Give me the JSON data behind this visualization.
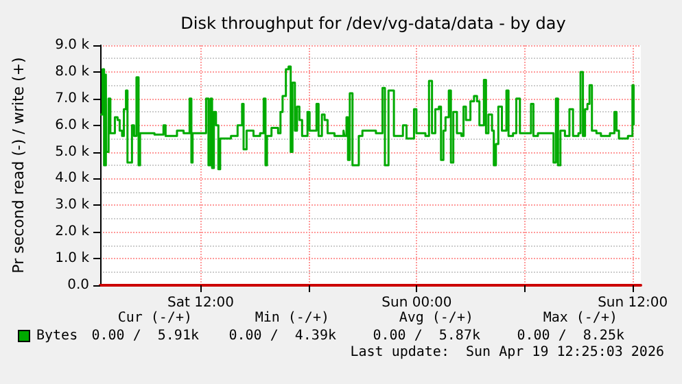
{
  "chart_data": {
    "type": "step",
    "title": "Disk throughput for /dev/vg-data/data - by day",
    "ylabel": "Pr second read (-) / write (+)",
    "x": [
      "2026-04-18T06:26",
      "2026-04-18T06:33",
      "2026-04-18T06:38",
      "2026-04-18T06:44",
      "2026-04-18T06:45",
      "2026-04-18T06:53",
      "2026-04-18T06:59",
      "2026-04-18T07:08",
      "2026-04-18T07:14",
      "2026-04-18T07:23",
      "2026-04-18T07:30",
      "2026-04-18T07:38",
      "2026-04-18T07:44",
      "2026-04-18T07:51",
      "2026-04-18T07:56",
      "2026-04-18T08:03",
      "2026-04-18T08:11",
      "2026-04-18T08:18",
      "2026-04-18T08:26",
      "2026-04-18T08:33",
      "2026-04-18T08:38",
      "2026-04-18T08:56",
      "2026-04-18T09:26",
      "2026-04-18T09:56",
      "2026-04-18T10:03",
      "2026-04-18T10:41",
      "2026-04-18T11:03",
      "2026-04-18T11:23",
      "2026-04-18T11:29",
      "2026-04-18T11:33",
      "2026-04-18T11:56",
      "2026-04-18T12:18",
      "2026-04-18T12:26",
      "2026-04-18T12:33",
      "2026-04-18T12:38",
      "2026-04-18T12:44",
      "2026-04-18T12:51",
      "2026-04-18T12:59",
      "2026-04-18T13:05",
      "2026-04-18T13:26",
      "2026-04-18T13:41",
      "2026-04-18T14:03",
      "2026-04-18T14:18",
      "2026-04-18T14:23",
      "2026-04-18T14:33",
      "2026-04-18T14:56",
      "2026-04-18T15:18",
      "2026-04-18T15:30",
      "2026-04-18T15:36",
      "2026-04-18T15:41",
      "2026-04-18T15:56",
      "2026-04-18T16:18",
      "2026-04-18T16:26",
      "2026-04-18T16:33",
      "2026-04-18T16:44",
      "2026-04-18T16:53",
      "2026-04-18T17:00",
      "2026-04-18T17:06",
      "2026-04-18T17:14",
      "2026-04-18T17:21",
      "2026-04-18T17:29",
      "2026-04-18T17:38",
      "2026-04-18T17:45",
      "2026-04-18T17:56",
      "2026-04-18T18:03",
      "2026-04-18T18:26",
      "2026-04-18T18:33",
      "2026-04-18T18:44",
      "2026-04-18T18:53",
      "2026-04-18T19:03",
      "2026-04-18T19:26",
      "2026-04-18T19:56",
      "2026-04-18T19:59",
      "2026-04-18T20:06",
      "2026-04-18T20:11",
      "2026-04-18T20:17",
      "2026-04-18T20:26",
      "2026-04-18T20:36",
      "2026-04-18T20:47",
      "2026-04-18T20:59",
      "2026-04-18T21:44",
      "2026-04-18T22:06",
      "2026-04-18T22:14",
      "2026-04-18T22:26",
      "2026-04-18T22:44",
      "2026-04-18T23:14",
      "2026-04-18T23:26",
      "2026-04-18T23:51",
      "2026-04-18T23:59",
      "2026-04-19T00:29",
      "2026-04-19T00:41",
      "2026-04-19T00:51",
      "2026-04-19T01:02",
      "2026-04-19T01:14",
      "2026-04-19T01:21",
      "2026-04-19T01:29",
      "2026-04-19T01:36",
      "2026-04-19T01:47",
      "2026-04-19T01:54",
      "2026-04-19T02:02",
      "2026-04-19T02:14",
      "2026-04-19T02:29",
      "2026-04-19T02:36",
      "2026-04-19T02:44",
      "2026-04-19T02:59",
      "2026-04-19T03:11",
      "2026-04-19T03:21",
      "2026-04-19T03:29",
      "2026-04-19T03:44",
      "2026-04-19T03:51",
      "2026-04-19T03:59",
      "2026-04-19T04:11",
      "2026-04-19T04:17",
      "2026-04-19T04:24",
      "2026-04-19T04:32",
      "2026-04-19T04:44",
      "2026-04-19T04:59",
      "2026-04-19T05:06",
      "2026-04-19T05:21",
      "2026-04-19T05:32",
      "2026-04-19T05:44",
      "2026-04-19T06:21",
      "2026-04-19T06:29",
      "2026-04-19T06:44",
      "2026-04-19T07:29",
      "2026-04-19T07:36",
      "2026-04-19T07:44",
      "2026-04-19T07:51",
      "2026-04-19T07:59",
      "2026-04-19T08:14",
      "2026-04-19T08:29",
      "2026-04-19T08:41",
      "2026-04-19T08:59",
      "2026-04-19T09:06",
      "2026-04-19T09:14",
      "2026-04-19T09:21",
      "2026-04-19T09:29",
      "2026-04-19T09:36",
      "2026-04-19T09:44",
      "2026-04-19T09:59",
      "2026-04-19T10:14",
      "2026-04-19T10:44",
      "2026-04-19T10:59",
      "2026-04-19T11:06",
      "2026-04-19T11:14",
      "2026-04-19T11:44",
      "2026-04-19T11:59",
      "2026-04-19T12:03"
    ],
    "series": [
      {
        "name": "Bytes",
        "color": "#00aa00",
        "values": [
          6400,
          8100,
          4500,
          7900,
          5000,
          7000,
          5700,
          5700,
          6300,
          6200,
          5800,
          5600,
          6600,
          7300,
          4600,
          4600,
          6000,
          5600,
          7800,
          4500,
          5700,
          5700,
          5650,
          6000,
          5600,
          5800,
          5700,
          7000,
          4600,
          5700,
          5700,
          7000,
          4500,
          7000,
          4400,
          6500,
          6000,
          4350,
          5500,
          5500,
          5600,
          6000,
          6800,
          5100,
          5800,
          5600,
          5700,
          7000,
          4500,
          5600,
          5900,
          5700,
          6500,
          7100,
          8100,
          8200,
          5000,
          7600,
          5800,
          6700,
          6200,
          5600,
          5600,
          6500,
          5800,
          6800,
          5600,
          6400,
          6200,
          5700,
          5600,
          5800,
          5600,
          6300,
          4700,
          7200,
          4500,
          4500,
          5600,
          5800,
          5700,
          7400,
          4500,
          7300,
          5600,
          6000,
          5500,
          6600,
          5700,
          5600,
          7660,
          5700,
          6600,
          6700,
          4700,
          5800,
          6300,
          7300,
          4600,
          6500,
          5700,
          5600,
          6700,
          6200,
          6900,
          7100,
          6900,
          6000,
          7700,
          5700,
          6400,
          5800,
          4500,
          5300,
          6700,
          5800,
          7300,
          5600,
          5700,
          7000,
          5700,
          6800,
          5600,
          5700,
          5700,
          4600,
          7000,
          4500,
          5800,
          5600,
          6600,
          5600,
          5700,
          8000,
          5600,
          6600,
          6800,
          7500,
          5800,
          5700,
          5600,
          5700,
          6500,
          5800,
          5500,
          5600,
          7500,
          6000
        ]
      }
    ],
    "xlim": [
      "2026-04-18T06:25",
      "2026-04-19T12:27"
    ],
    "xticks": [
      {
        "value": "2026-04-18T12:00",
        "label": "Sat 12:00"
      },
      {
        "value": "2026-04-18T18:00",
        "label": null
      },
      {
        "value": "2026-04-19T00:00",
        "label": "Sun 00:00"
      },
      {
        "value": "2026-04-19T06:00",
        "label": null
      },
      {
        "value": "2026-04-19T12:00",
        "label": "Sun 12:00"
      }
    ],
    "ylim": [
      0,
      9000
    ],
    "yticks": [
      {
        "value": 0,
        "label": "0.0"
      },
      {
        "value": 1000,
        "label": "1.0 k"
      },
      {
        "value": 2000,
        "label": "2.0 k"
      },
      {
        "value": 3000,
        "label": "3.0 k"
      },
      {
        "value": 4000,
        "label": "4.0 k"
      },
      {
        "value": 5000,
        "label": "5.0 k"
      },
      {
        "value": 6000,
        "label": "6.0 k"
      },
      {
        "value": 7000,
        "label": "7.0 k"
      },
      {
        "value": 8000,
        "label": "8.0 k"
      },
      {
        "value": 9000,
        "label": "9.0 k"
      }
    ],
    "grid": true,
    "legend": "bottom left",
    "marker": "none",
    "annotations": [
      "Cur (-/+)",
      "Min (-/+)",
      "Avg (-/+)",
      "Max (-/+)",
      "0.00 /  5.91k",
      "0.00 /  4.39k",
      "0.00 /  5.87k",
      "0.00 /  8.25k",
      "Last update:  Sun Apr 19 12:25:03 2026"
    ]
  }
}
